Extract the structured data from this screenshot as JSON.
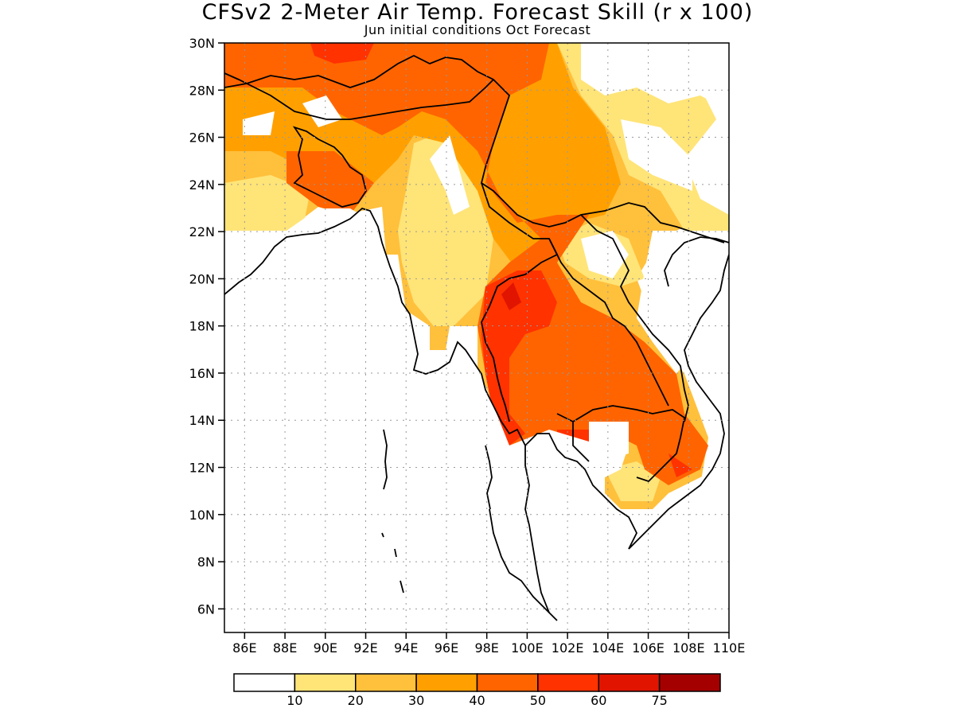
{
  "title": "CFSv2 2-Meter Air Temp. Forecast Skill (r x 100)",
  "subtitle": "Jun initial conditions  Oct Forecast",
  "map": {
    "lon_range": [
      85,
      110
    ],
    "lat_range": [
      5,
      30
    ],
    "lat_ticks": [
      "30N",
      "28N",
      "26N",
      "24N",
      "22N",
      "20N",
      "18N",
      "16N",
      "14N",
      "12N",
      "10N",
      "8N",
      "6N"
    ],
    "lon_ticks": [
      "86E",
      "88E",
      "90E",
      "92E",
      "94E",
      "96E",
      "98E",
      "100E",
      "102E",
      "104E",
      "106E",
      "108E",
      "110E"
    ],
    "grid": true
  },
  "colorbar": {
    "colors": [
      "#ffffff",
      "#ffe478",
      "#ffc03c",
      "#ffa000",
      "#ff6400",
      "#ff3200",
      "#e11400",
      "#a50000"
    ],
    "labels": [
      "10",
      "20",
      "30",
      "40",
      "50",
      "60",
      "75"
    ]
  },
  "chart_data": {
    "type": "heatmap",
    "title": "CFSv2 2-Meter Air Temp. Forecast Skill (r x 100)",
    "subtitle": "Jun initial conditions  Oct Forecast",
    "x_range": [
      85,
      110
    ],
    "y_range": [
      5,
      30
    ],
    "levels": [
      10,
      20,
      30,
      40,
      50,
      60,
      75
    ],
    "regions": [
      {
        "level_min": 40,
        "level_max": 50,
        "lon": [
          85,
          86,
          88,
          90,
          92,
          93,
          95,
          96,
          98,
          100,
          102,
          103,
          105,
          107,
          108,
          107,
          105,
          103,
          101,
          100,
          98,
          96,
          94,
          92,
          90,
          88,
          86
        ],
        "lat": [
          29,
          30,
          30,
          30,
          30,
          30,
          30,
          28.5,
          26,
          23,
          20,
          18,
          16,
          14.5,
          13,
          12,
          11.5,
          11,
          13,
          15,
          17,
          19,
          21,
          23,
          25,
          27,
          28
        ]
      },
      {
        "level_min": 50,
        "level_max": 60,
        "lon": [
          98,
          99,
          100,
          101,
          102,
          103,
          104,
          105,
          106,
          107,
          106,
          104,
          102,
          100,
          99,
          98
        ],
        "lat": [
          20,
          21,
          20,
          19,
          18,
          17.5,
          16.5,
          15.5,
          14.5,
          13,
          12,
          13,
          13,
          13,
          16,
          18
        ]
      },
      {
        "level_min": 60,
        "level_max": 75,
        "lon": [
          97.8,
          99,
          100,
          99,
          98.5,
          98
        ],
        "lat": [
          19.5,
          20,
          19,
          17,
          15.5,
          16.5
        ]
      },
      {
        "level_min": 10,
        "level_max": 30,
        "lon": [
          94,
          95,
          96,
          97,
          98,
          97,
          95,
          94
        ],
        "lat": [
          25,
          26,
          24,
          22,
          20,
          18,
          17,
          20
        ]
      },
      {
        "level_min": 0,
        "level_max": 10,
        "lon": [
          100,
          102,
          104,
          106,
          108,
          110,
          110,
          107,
          105,
          103,
          102,
          100
        ],
        "lat": [
          29,
          30,
          30,
          30,
          29,
          28,
          24,
          22,
          22,
          23,
          25,
          27
        ]
      }
    ]
  }
}
